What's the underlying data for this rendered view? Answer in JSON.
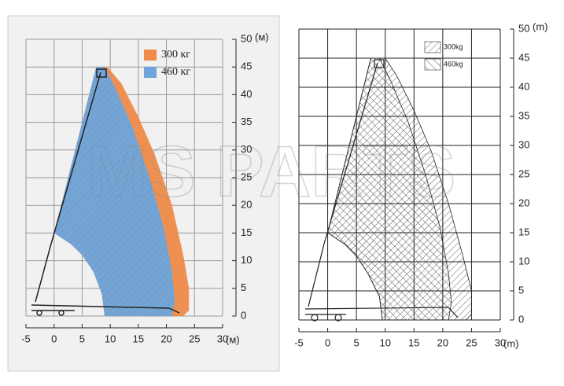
{
  "chart_data": [
    {
      "type": "area",
      "xlim": [
        -5,
        30
      ],
      "ylim": [
        0,
        50
      ],
      "xticks": [
        -5,
        0,
        5,
        10,
        15,
        20,
        25,
        30
      ],
      "yticks": [
        0,
        5,
        10,
        15,
        20,
        25,
        30,
        35,
        40,
        45,
        50
      ],
      "xlabel": "(м)",
      "ylabel": "(м)",
      "grid": true,
      "fill": "solid",
      "legend": "top-right",
      "series": [
        {
          "name": "300 кг",
          "color": "#ee8a4a",
          "x": [
            0,
            2.5,
            5,
            6.5,
            7.5,
            9.5,
            12,
            15,
            18,
            21,
            23,
            24,
            24,
            23,
            9,
            8.5,
            7,
            5,
            3
          ],
          "values": [
            15,
            25,
            35,
            41,
            45,
            45,
            42,
            36,
            29,
            20,
            11,
            5,
            1,
            0,
            0,
            4,
            8,
            11,
            13
          ]
        },
        {
          "name": "460 кг",
          "color": "#6ea6dc",
          "x": [
            0,
            2.5,
            5,
            6.5,
            7.5,
            9,
            11,
            14,
            17,
            19.5,
            21,
            21.5,
            21,
            9,
            8.5,
            7,
            5,
            3
          ],
          "values": [
            15,
            25,
            35,
            41,
            45,
            45,
            41,
            34,
            25,
            16,
            8,
            3,
            0,
            0,
            4,
            8,
            11,
            13
          ]
        }
      ]
    },
    {
      "type": "area",
      "xlim": [
        -5,
        30
      ],
      "ylim": [
        0,
        50
      ],
      "xticks": [
        -5,
        0,
        5,
        10,
        15,
        20,
        25,
        30
      ],
      "yticks": [
        0,
        5,
        10,
        15,
        20,
        25,
        30,
        35,
        40,
        45,
        50
      ],
      "xlabel": "(m)",
      "ylabel": "(m)",
      "grid": true,
      "fill": "hatched",
      "legend": "top-right",
      "series": [
        {
          "name": "300kg",
          "color": "#222222",
          "x": [
            0,
            2.5,
            5,
            6.5,
            7.5,
            10,
            12,
            15,
            18,
            21,
            23.5,
            25,
            25,
            24,
            9.5,
            9,
            7,
            5,
            3
          ],
          "values": [
            15,
            25,
            35,
            41,
            45,
            45,
            42,
            36,
            29,
            20,
            11,
            5,
            1,
            0,
            0,
            4,
            8,
            11,
            13
          ]
        },
        {
          "name": "460kg",
          "color": "#222222",
          "x": [
            0,
            2.5,
            5,
            6.5,
            7.5,
            9,
            11,
            14,
            17,
            19.5,
            21,
            21.5,
            21,
            9.5,
            9,
            7,
            5,
            3
          ],
          "values": [
            15,
            25,
            35,
            41,
            45,
            45,
            41,
            34,
            25,
            16,
            8,
            3,
            0,
            0,
            4,
            8,
            11,
            13
          ]
        }
      ]
    }
  ],
  "watermark": "MS PARTS"
}
